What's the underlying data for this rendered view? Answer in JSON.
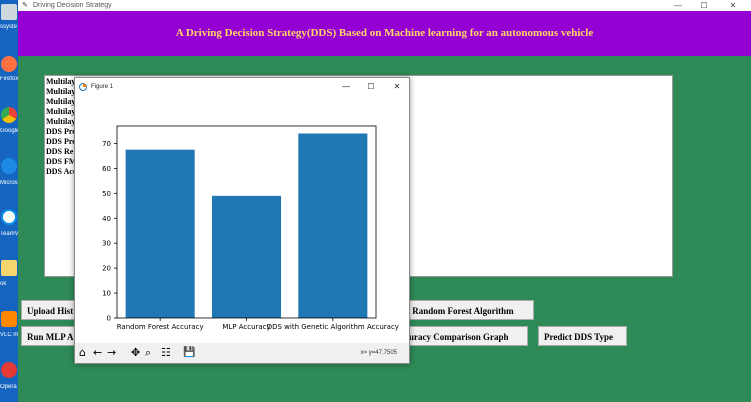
{
  "window": {
    "title": "Driving Decision Strategy",
    "minimize": "—",
    "maximize": "☐",
    "close": "✕"
  },
  "header": {
    "title": "A Driving Decision Strategy(DDS) Based on Machine learning for an autonomous vehicle"
  },
  "output_lines": [
    "Multilay",
    "Multilay",
    "Multilay",
    "Multilay",
    "Multilay",
    "DDS Pre",
    "DDS Pre",
    "DDS Re",
    "DDS FM",
    "DDS Acc"
  ],
  "buttons": {
    "upload": "Upload Hist",
    "run_mlp": "Run MLP A",
    "random_forest": "n Random Forest Algorithm",
    "comparison": "curacy Comparison Graph",
    "predict": "Predict DDS Type"
  },
  "desktop_icons": [
    {
      "name": "app-icon",
      "label": "ssyste"
    },
    {
      "name": "firefox-icon",
      "label": "Firefox"
    },
    {
      "name": "chrome-icon",
      "label": "Google Chrom"
    },
    {
      "name": "edge-icon",
      "label": "Micros Edge"
    },
    {
      "name": "teamviewer-icon",
      "label": "TeamVi"
    },
    {
      "name": "folder-icon",
      "label": "ok"
    },
    {
      "name": "vlc-icon",
      "label": "VLC me playe"
    },
    {
      "name": "opera-icon",
      "label": "Opera brows"
    }
  ],
  "figure": {
    "title": "Figure 1",
    "minimize": "—",
    "maximize": "☐",
    "close": "✕",
    "coords": "x= y=47.7505",
    "toolbar": {
      "home": "⌂",
      "back": "←",
      "forward": "→",
      "pan": "✥",
      "zoom": "⌕",
      "configure": "☷",
      "save": "💾"
    }
  },
  "chart_data": {
    "type": "bar",
    "categories": [
      "Random Forest Accuracy",
      "MLP Accuracy",
      "DDS with Genetic Algorithm Accuracy"
    ],
    "values": [
      67.5,
      49,
      74
    ],
    "ylim": [
      0,
      77
    ],
    "yticks": [
      0,
      10,
      20,
      30,
      40,
      50,
      60,
      70
    ],
    "bar_color": "#1f77b4",
    "title": "",
    "xlabel": "",
    "ylabel": ""
  }
}
